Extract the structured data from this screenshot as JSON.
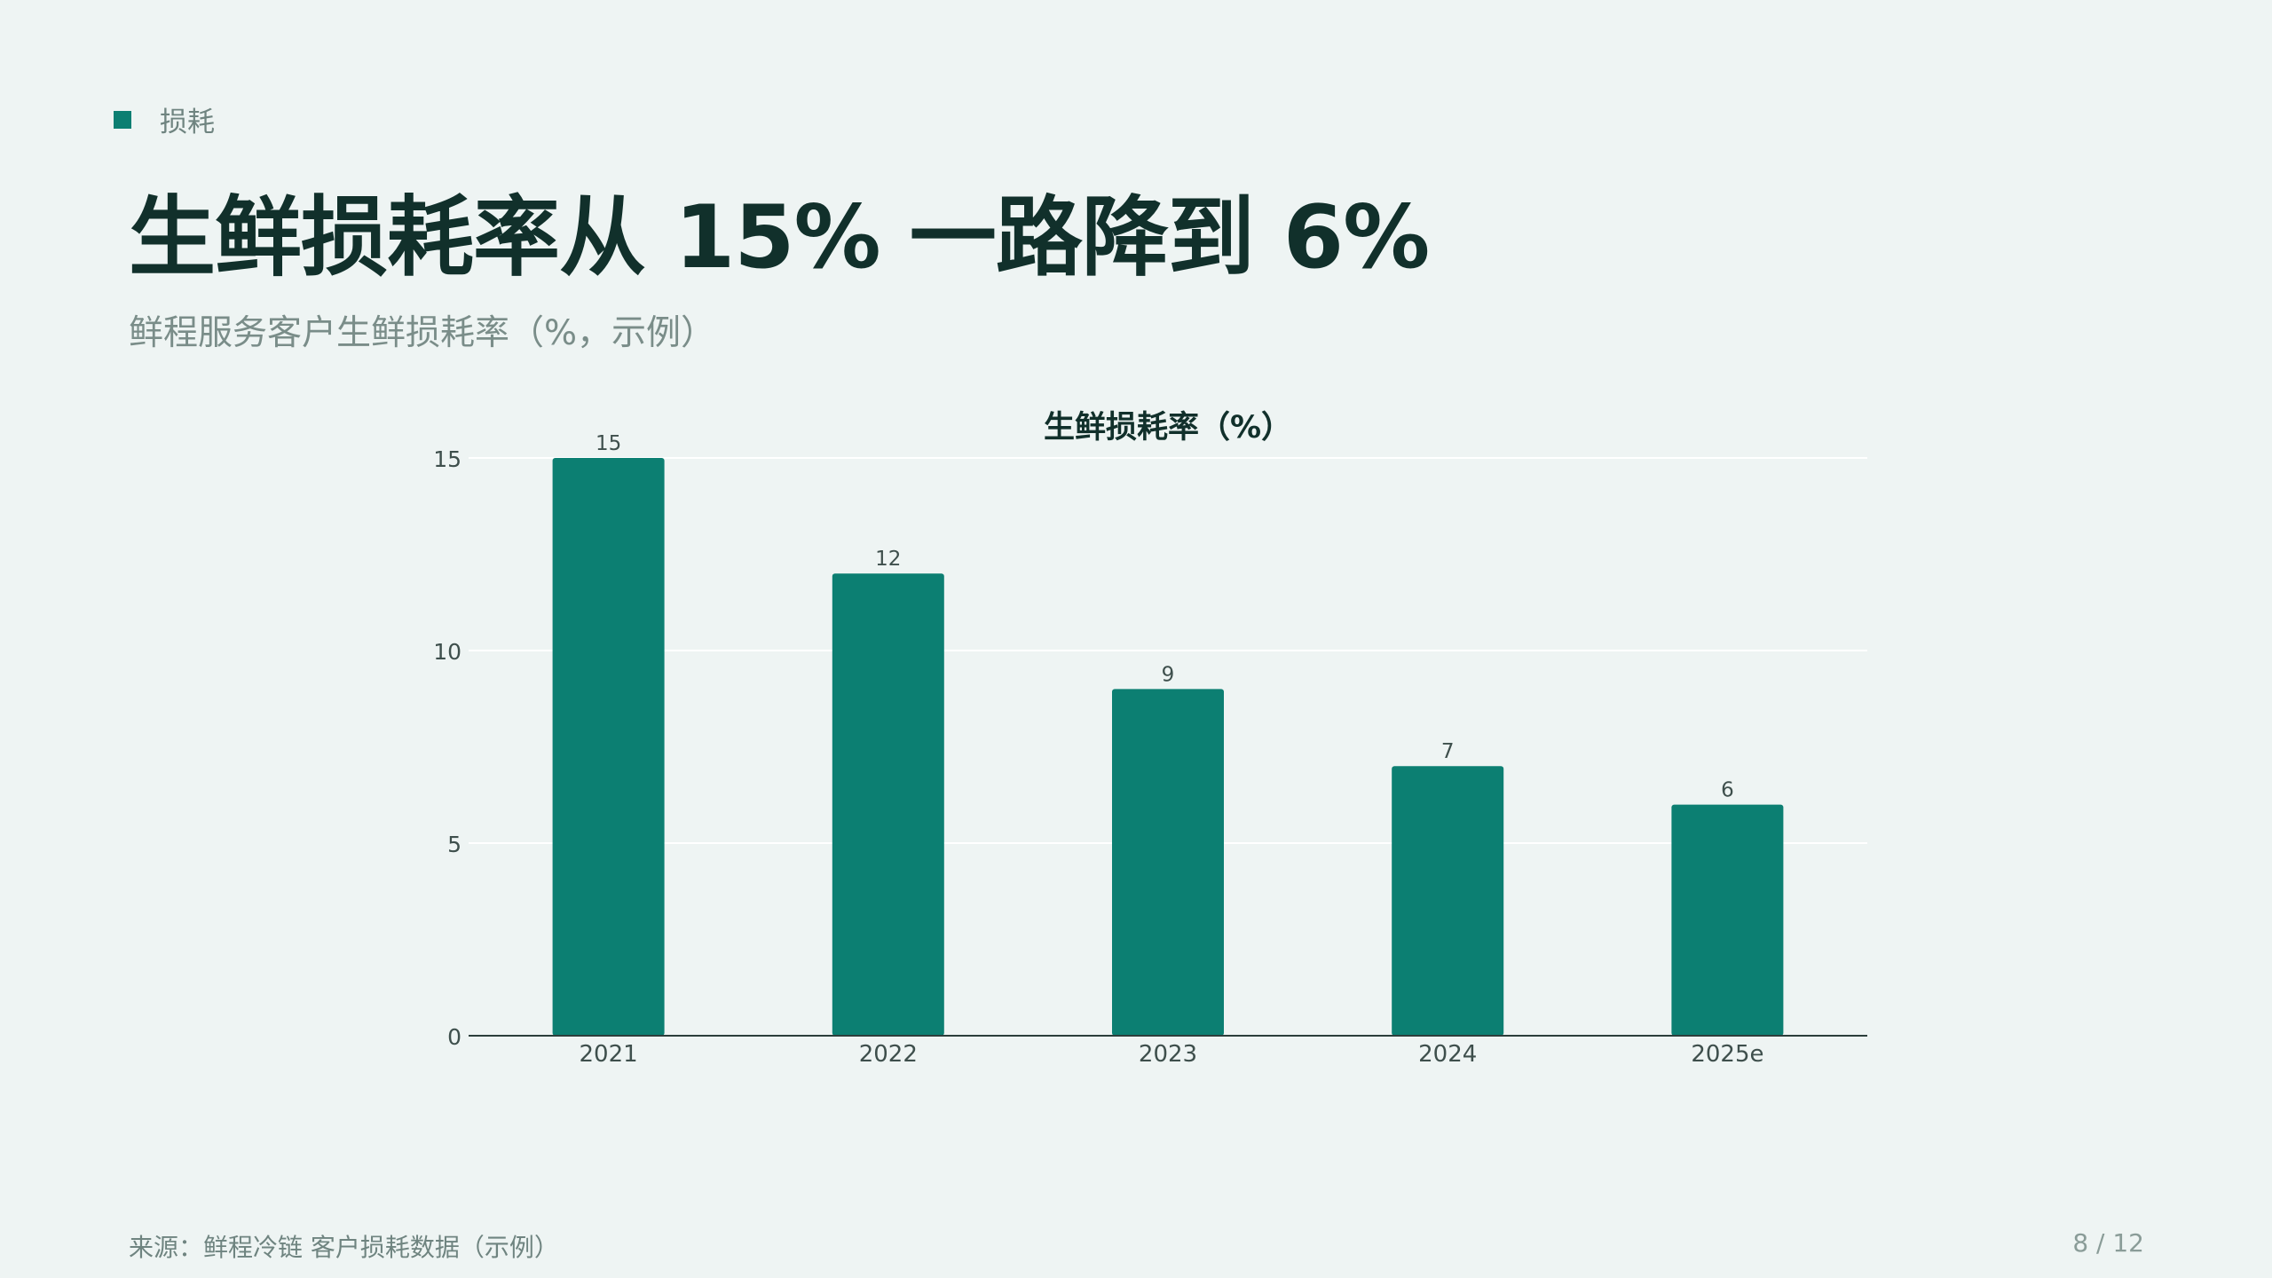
{
  "tag": {
    "label": "损耗"
  },
  "title": "生鲜损耗率从 15% 一路降到 6%",
  "subtitle": "鲜程服务客户生鲜损耗率（%，示例）",
  "colors": {
    "accent": "#0c7f72",
    "title": "#11302b",
    "muted": "#7a8d89",
    "background": "#eef4f3"
  },
  "chart_data": {
    "type": "bar",
    "title": "生鲜损耗率（%）",
    "categories": [
      "2021",
      "2022",
      "2023",
      "2024",
      "2025e"
    ],
    "series": [
      {
        "values": [
          15,
          12,
          9,
          7,
          6
        ]
      }
    ],
    "ylim": [
      0,
      15
    ],
    "yticks": [
      0,
      5,
      10,
      15
    ],
    "grid": true,
    "data_labels": true,
    "xlabel": "",
    "ylabel": ""
  },
  "footer": {
    "source": "来源：鲜程冷链 客户损耗数据（示例）",
    "page": "8 / 12"
  }
}
